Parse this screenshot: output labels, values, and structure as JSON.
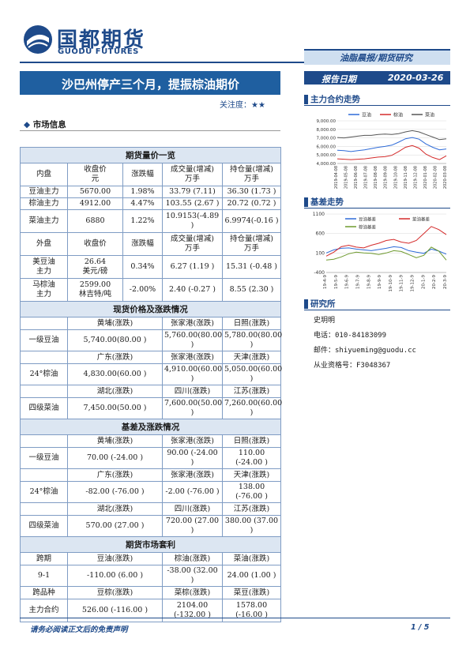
{
  "brand": {
    "name_cn": "国都期货",
    "name_en": "GUODU FUTURES"
  },
  "header": {
    "tag": "油脂晨报/期货研究",
    "date_label": "报告日期",
    "date": "2020-03-26"
  },
  "title": "沙巴州停产三个月，提振棕油期价",
  "attention": {
    "label": "关注度：",
    "stars": "★★"
  },
  "market_info_heading": "市场信息",
  "table": {
    "futures_title": "期货量价一览",
    "dom_header": [
      "内盘",
      "收盘价\n元",
      "涨跌幅",
      "成交量(增减)\n万手",
      "持仓量(增减)\n万手"
    ],
    "dom_rows": [
      [
        "豆油主力",
        "5670.00",
        "1.98%",
        "33.79 (7.11)",
        "36.30 (1.73 )"
      ],
      [
        "棕油主力",
        "4912.00",
        "4.47%",
        "103.55 (2.67 )",
        "20.72 (0.72 )"
      ],
      [
        "菜油主力",
        "6880",
        "1.22%",
        "10.9153(-4.89\n)",
        "6.9974(-0.16 )"
      ]
    ],
    "ext_header": [
      "外盘",
      "收盘价",
      "涨跌幅",
      "成交量(增减)\n万手",
      "持仓量(增减)\n万手"
    ],
    "ext_rows": [
      [
        "美豆油\n主力",
        "26.64\n美元/磅",
        "0.34%",
        "6.27 (1.19 )",
        "15.31 (-0.48 )"
      ],
      [
        "马棕油\n主力",
        "2599.00\n林吉特/吨",
        "-2.00%",
        "2.40 (-0.27 )",
        "8.55 (2.30 )"
      ]
    ],
    "spot_title": "现货价格及涨跌情况",
    "spot_rows": [
      [
        "",
        "黄埔(涨跌)",
        "张家港(涨跌)",
        "日照(涨跌)"
      ],
      [
        "一级豆油",
        "5,740.00(80.00 )",
        "5,760.00(80.00 )",
        "5,780.00(80.00 )"
      ],
      [
        "",
        "广东(涨跌)",
        "张家港(涨跌)",
        "天津(涨跌)"
      ],
      [
        "24°棕油",
        "4,830.00(60.00 )",
        "4,910.00(60.00 )",
        "5,050.00(60.00 )"
      ],
      [
        "",
        "湖北(涨跌)",
        "四川(涨跌)",
        "江苏(涨跌)"
      ],
      [
        "四级菜油",
        "7,450.00(50.00 )",
        "7,600.00(50.00 )",
        "7,260.00(60.00 )"
      ]
    ],
    "basis_title": "基差及涨跌情况",
    "basis_rows": [
      [
        "",
        "黄埔(涨跌)",
        "张家港(涨跌)",
        "日照(涨跌)"
      ],
      [
        "一级豆油",
        "70.00 (-24.00 )",
        "90.00 (-24.00 )",
        "110.00 (-24.00 )"
      ],
      [
        "",
        "广东(涨跌)",
        "张家港(涨跌)",
        "天津(涨跌)"
      ],
      [
        "24°棕油",
        "-82.00 (-76.00 )",
        "-2.00 (-76.00 )",
        "138.00 (-76.00 )"
      ],
      [
        "",
        "湖北(涨跌)",
        "四川(涨跌)",
        "江苏(涨跌)"
      ],
      [
        "四级菜油",
        "570.00 (27.00 )",
        "720.00 (27.00 )",
        "380.00 (37.00 )"
      ]
    ],
    "arb_title": "期货市场套利",
    "arb_rows": [
      [
        "跨期",
        "豆油(涨跌)",
        "棕油(涨跌)",
        "菜油(涨跌)"
      ],
      [
        "9-1",
        "-110.00 (6.00 )",
        "-38.00    (32.00 )",
        "24.00    (1.00 )"
      ],
      [
        "跨品种",
        "豆棕(涨跌)",
        "菜棕(涨跌)",
        "菜豆(涨跌)"
      ],
      [
        "主力合约",
        "526.00 (-116.00 )",
        "2104.00\n(-132.00 )",
        "1578.00 (-16.00 )"
      ]
    ]
  },
  "sidebar": {
    "trend_title": "主力合约走势",
    "basis_title": "基差走势",
    "research_title": "研究所",
    "analyst": "史玥明",
    "phone": "电话：010-84183099",
    "email": "邮件：shiyueming@guodu.cc",
    "license": "从业资格号：F3048367"
  },
  "footer": {
    "disclaimer": "请务必阅读正文后的免责声明",
    "page": "1 / 5"
  },
  "chart_data": [
    {
      "type": "line",
      "title": "",
      "series_names": [
        "豆油",
        "棕油",
        "菜油"
      ],
      "colors": [
        "#2e6bd8",
        "#d42a2a",
        "#555555"
      ],
      "ylim": [
        4000,
        9000
      ],
      "y_ticks": [
        "9,000.00",
        "8,000.00",
        "7,000.00",
        "6,000.00",
        "5,000.00",
        "4,000.00"
      ],
      "x_ticks": [
        "2019-04-08",
        "2019-05-08",
        "2019-06-08",
        "2019-07-08",
        "2019-08-08",
        "2019-09-08",
        "2019-10-08",
        "2019-11-08",
        "2019-12-08",
        "2020-01-08",
        "2020-02-08",
        "2020-03-08"
      ],
      "series": [
        {
          "name": "豆油",
          "values": [
            5550,
            5500,
            5400,
            5500,
            5600,
            5750,
            5900,
            6000,
            6150,
            6500,
            6900,
            7050,
            6850,
            6300,
            5900,
            5600,
            5700
          ]
        },
        {
          "name": "棕油",
          "values": [
            4550,
            4500,
            4450,
            4500,
            4550,
            4650,
            4750,
            4800,
            4950,
            5400,
            5900,
            6100,
            5800,
            5100,
            4700,
            4450,
            4900
          ]
        },
        {
          "name": "菜油",
          "values": [
            7050,
            7000,
            7100,
            7200,
            7300,
            7300,
            7400,
            7450,
            7400,
            7500,
            7700,
            7850,
            7700,
            7400,
            7100,
            6800,
            6900
          ]
        }
      ]
    },
    {
      "type": "line",
      "title": "",
      "series_names": [
        "豆油基差",
        "菜油基差",
        "棕油基差"
      ],
      "colors": [
        "#2e6bd8",
        "#d42a2a",
        "#6e9a2e"
      ],
      "ylim": [
        -400,
        1100
      ],
      "y_ticks": [
        "1100",
        "600",
        "100",
        "-400"
      ],
      "x_ticks": [
        "19-4-9",
        "19-5-9",
        "19-6-9",
        "19-7-9",
        "19-8-9",
        "19-9-9",
        "19-10-9",
        "19-11-9",
        "19-12-9",
        "20-1-9",
        "20-2-9",
        "20-3-9"
      ],
      "series": [
        {
          "name": "豆油基差",
          "values": [
            100,
            180,
            220,
            230,
            200,
            180,
            160,
            190,
            220,
            260,
            240,
            160,
            120,
            90,
            200,
            150,
            70
          ]
        },
        {
          "name": "菜油基差",
          "values": [
            20,
            120,
            260,
            300,
            250,
            230,
            300,
            350,
            420,
            450,
            380,
            350,
            420,
            600,
            780,
            700,
            570
          ]
        },
        {
          "name": "棕油基差",
          "values": [
            -80,
            -60,
            0,
            80,
            120,
            100,
            90,
            60,
            100,
            160,
            140,
            60,
            -20,
            40,
            250,
            150,
            -82
          ]
        }
      ]
    }
  ]
}
